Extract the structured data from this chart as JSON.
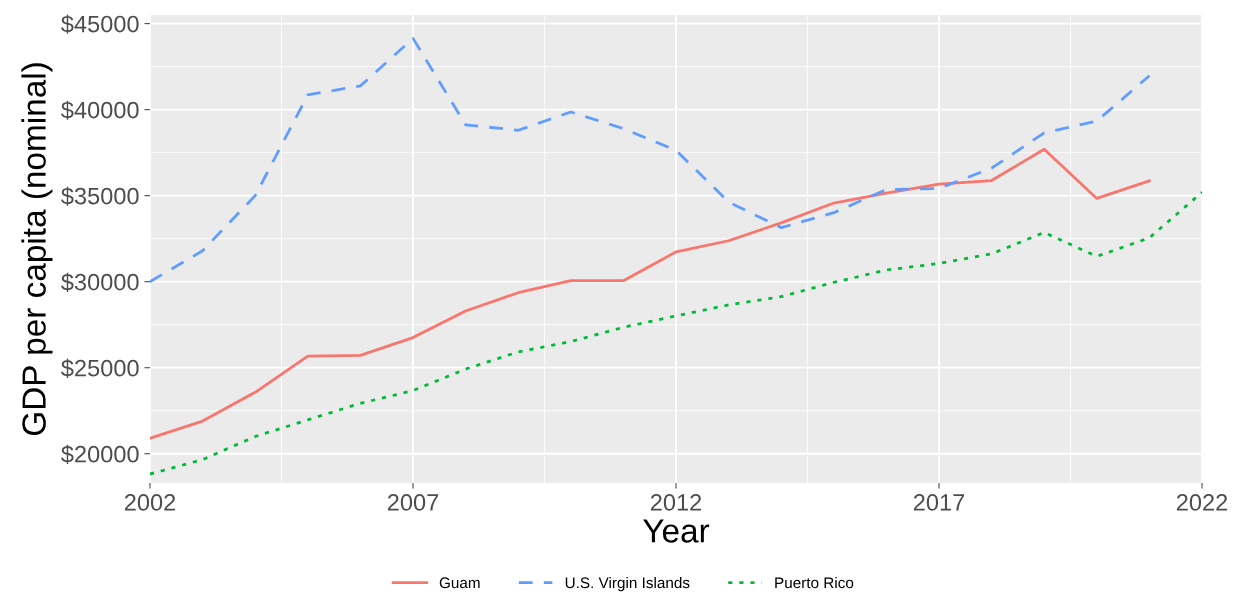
{
  "chart_data": {
    "type": "line",
    "x": [
      2002,
      2003,
      2004,
      2005,
      2006,
      2007,
      2008,
      2009,
      2010,
      2011,
      2012,
      2013,
      2014,
      2015,
      2016,
      2017,
      2018,
      2019,
      2020,
      2021,
      2022
    ],
    "series": [
      {
        "name": "Guam",
        "color": "#f8766d",
        "line_style": "solid",
        "values": [
          20900,
          21900,
          23570,
          25680,
          25720,
          26750,
          28300,
          29360,
          30060,
          30060,
          31730,
          32380,
          33420,
          34570,
          35150,
          35670,
          35880,
          37700,
          34840,
          35860,
          null
        ]
      },
      {
        "name": "U.S. Virgin Islands",
        "color": "#619cff",
        "line_style": "dashed",
        "values": [
          30000,
          31800,
          35000,
          40860,
          41380,
          44140,
          39120,
          38800,
          39860,
          38900,
          37630,
          34630,
          33140,
          34010,
          35360,
          35420,
          36600,
          38650,
          39340,
          41970,
          null
        ]
      },
      {
        "name": "Puerto Rico",
        "color": "#00ba38",
        "line_style": "dotted",
        "values": [
          18820,
          19660,
          21000,
          21970,
          22930,
          23670,
          24920,
          25920,
          26520,
          27350,
          28010,
          28650,
          29130,
          29960,
          30680,
          31060,
          31620,
          32860,
          31470,
          32550,
          35200
        ]
      }
    ],
    "xlabel": "Year",
    "ylabel": "GDP per capita (nominal)",
    "xlim": [
      2002,
      2022
    ],
    "xticks": [
      2002,
      2007,
      2012,
      2017,
      2022
    ],
    "ylim": [
      18300,
      45500
    ],
    "yticks": [
      {
        "value": 20000,
        "label": "$20000"
      },
      {
        "value": 25000,
        "label": "$25000"
      },
      {
        "value": 30000,
        "label": "$30000"
      },
      {
        "value": 35000,
        "label": "$35000"
      },
      {
        "value": 40000,
        "label": "$40000"
      },
      {
        "value": 45000,
        "label": "$45000"
      }
    ],
    "grid": true,
    "legend": "bottom",
    "marker": "none"
  }
}
